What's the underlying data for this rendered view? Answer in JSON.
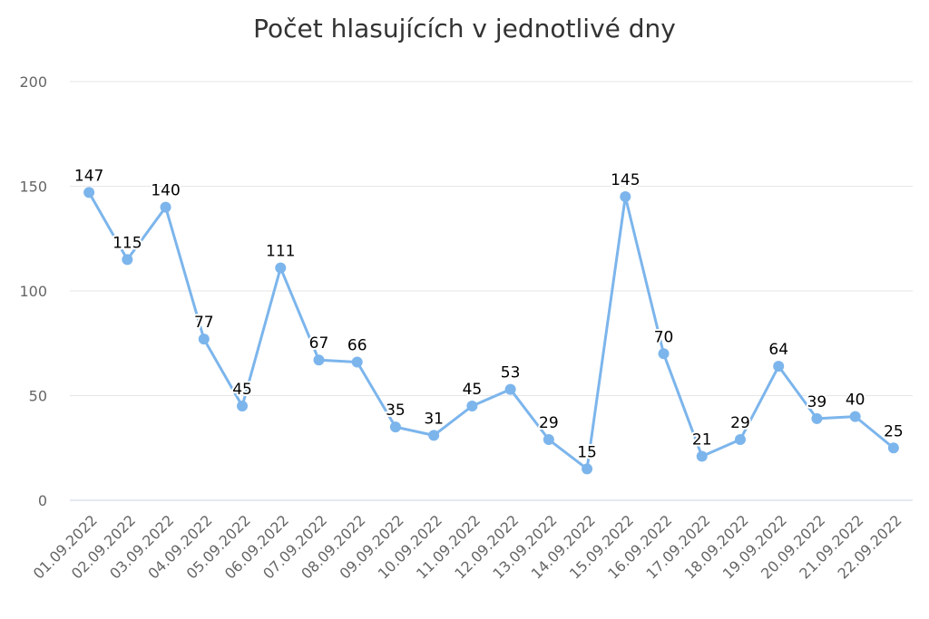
{
  "chart_data": {
    "type": "line",
    "title": "Počet hlasujících v jednotlivé dny",
    "xlabel": "",
    "ylabel": "",
    "ylim": [
      0,
      200
    ],
    "yticks": [
      0,
      50,
      100,
      150,
      200
    ],
    "grid": true,
    "legend": "none",
    "color": "#7cb5ec",
    "categories": [
      "01.09.2022",
      "02.09.2022",
      "03.09.2022",
      "04.09.2022",
      "05.09.2022",
      "06.09.2022",
      "07.09.2022",
      "08.09.2022",
      "09.09.2022",
      "10.09.2022",
      "11.09.2022",
      "12.09.2022",
      "13.09.2022",
      "14.09.2022",
      "15.09.2022",
      "16.09.2022",
      "17.09.2022",
      "18.09.2022",
      "19.09.2022",
      "20.09.2022",
      "21.09.2022",
      "22.09.2022"
    ],
    "series": [
      {
        "values": [
          147,
          115,
          140,
          77,
          45,
          111,
          67,
          66,
          35,
          31,
          45,
          53,
          29,
          15,
          145,
          70,
          21,
          29,
          64,
          39,
          40,
          25
        ]
      }
    ]
  }
}
